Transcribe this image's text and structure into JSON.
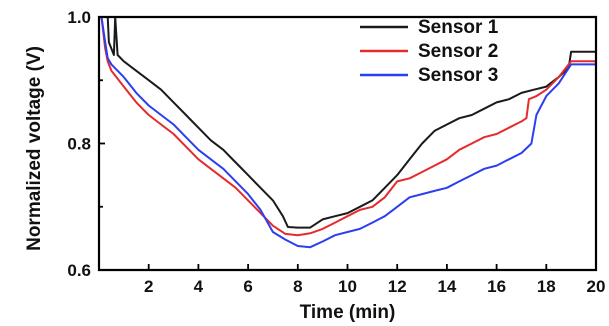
{
  "chart_data": {
    "type": "line",
    "title": "",
    "xlabel": "Time (min)",
    "ylabel": "Normalized voltage (V)",
    "xlim": [
      0,
      20
    ],
    "ylim": [
      0.6,
      1.0
    ],
    "x_ticks": [
      2,
      4,
      6,
      8,
      10,
      12,
      14,
      16,
      18,
      20
    ],
    "y_ticks": [
      0.6,
      0.8,
      1.0
    ],
    "y_tick_labels": [
      "0.6",
      "0.8",
      "1.0"
    ],
    "grid": false,
    "legend_position": "top-right",
    "series": [
      {
        "name": "Sensor 1",
        "color": "#1a1a1a",
        "x": [
          0.1,
          0.35,
          0.4,
          0.6,
          0.65,
          0.75,
          1.0,
          1.5,
          2.0,
          2.5,
          3.0,
          3.5,
          4.0,
          4.5,
          5.0,
          5.5,
          6.0,
          6.5,
          7.0,
          7.4,
          7.6,
          8.0,
          8.5,
          9.0,
          9.5,
          10.0,
          10.5,
          11.0,
          11.5,
          12.0,
          12.5,
          13.0,
          13.5,
          14.0,
          14.5,
          15.0,
          15.5,
          16.0,
          16.5,
          17.0,
          17.5,
          18.0,
          18.5,
          18.9,
          19.0,
          19.5,
          20.0
        ],
        "values": [
          1.0,
          1.0,
          0.96,
          0.94,
          1.0,
          0.94,
          0.93,
          0.915,
          0.9,
          0.885,
          0.865,
          0.845,
          0.825,
          0.805,
          0.79,
          0.77,
          0.75,
          0.73,
          0.71,
          0.685,
          0.668,
          0.667,
          0.667,
          0.68,
          0.685,
          0.69,
          0.7,
          0.71,
          0.73,
          0.75,
          0.775,
          0.8,
          0.82,
          0.83,
          0.84,
          0.845,
          0.855,
          0.865,
          0.87,
          0.88,
          0.885,
          0.89,
          0.905,
          0.92,
          0.945,
          0.945,
          0.945
        ]
      },
      {
        "name": "Sensor 2",
        "color": "#e52b2b",
        "x": [
          0.1,
          0.25,
          0.35,
          0.5,
          1.0,
          1.5,
          2.0,
          2.5,
          3.0,
          3.5,
          4.0,
          4.5,
          5.0,
          5.5,
          6.0,
          6.5,
          7.0,
          7.5,
          8.0,
          8.5,
          9.0,
          9.5,
          10.0,
          10.5,
          11.0,
          11.5,
          12.0,
          12.5,
          13.0,
          13.5,
          14.0,
          14.5,
          15.0,
          15.5,
          16.0,
          16.5,
          17.0,
          17.2,
          17.3,
          17.6,
          18.0,
          18.5,
          19.0,
          19.5,
          20.0
        ],
        "values": [
          1.0,
          0.95,
          0.93,
          0.915,
          0.89,
          0.865,
          0.845,
          0.83,
          0.815,
          0.795,
          0.775,
          0.76,
          0.745,
          0.73,
          0.71,
          0.69,
          0.67,
          0.657,
          0.655,
          0.658,
          0.665,
          0.675,
          0.685,
          0.695,
          0.7,
          0.715,
          0.74,
          0.745,
          0.755,
          0.765,
          0.775,
          0.79,
          0.8,
          0.81,
          0.815,
          0.825,
          0.835,
          0.84,
          0.87,
          0.875,
          0.885,
          0.905,
          0.93,
          0.93,
          0.93
        ]
      },
      {
        "name": "Sensor 3",
        "color": "#2b3ff0",
        "x": [
          0.1,
          0.25,
          0.35,
          0.5,
          1.0,
          1.5,
          2.0,
          2.5,
          3.0,
          3.5,
          4.0,
          4.5,
          5.0,
          5.5,
          6.0,
          6.5,
          7.0,
          7.5,
          8.0,
          8.5,
          9.0,
          9.5,
          10.0,
          10.5,
          11.0,
          11.5,
          12.0,
          12.5,
          13.0,
          13.5,
          14.0,
          14.5,
          15.0,
          15.5,
          16.0,
          16.5,
          17.0,
          17.4,
          17.6,
          18.0,
          18.5,
          19.0,
          19.5,
          20.0
        ],
        "values": [
          1.0,
          0.96,
          0.935,
          0.925,
          0.905,
          0.88,
          0.86,
          0.845,
          0.83,
          0.81,
          0.79,
          0.775,
          0.76,
          0.74,
          0.72,
          0.695,
          0.66,
          0.648,
          0.638,
          0.636,
          0.645,
          0.655,
          0.66,
          0.665,
          0.675,
          0.685,
          0.7,
          0.715,
          0.72,
          0.725,
          0.73,
          0.74,
          0.75,
          0.76,
          0.765,
          0.775,
          0.785,
          0.8,
          0.845,
          0.875,
          0.895,
          0.925,
          0.925,
          0.925
        ]
      }
    ]
  }
}
